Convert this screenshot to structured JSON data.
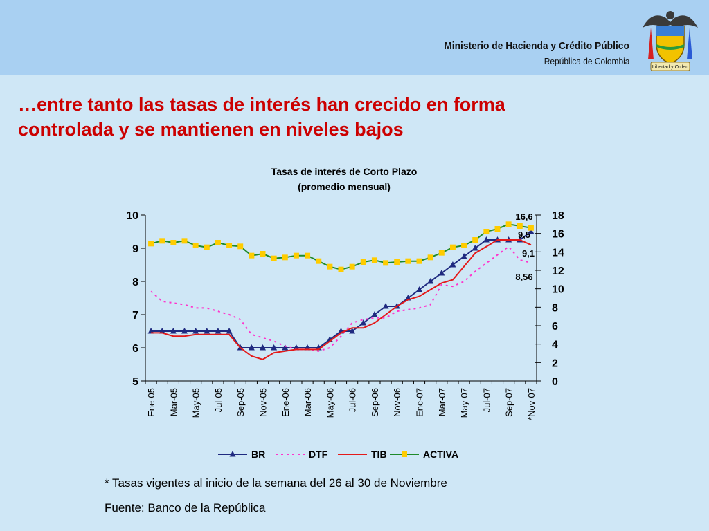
{
  "header": {
    "ministry": "Ministerio de Hacienda y Crédito Público",
    "republic": "República de Colombia",
    "motto": "Libertad y Orden"
  },
  "slide": {
    "title_line1": "…entre tanto las tasas de interés han crecido en forma",
    "title_line2": "controlada y se mantienen en niveles bajos"
  },
  "notes": {
    "footnote": "* Tasas vigentes al inicio de la semana del 26 al 30 de Noviembre",
    "source": "Fuente: Banco de la República"
  },
  "colors": {
    "br": "#1f2a80",
    "dtf": "#ff33cc",
    "tib": "#e41a1a",
    "activa": "#1f8a2a",
    "activa_marker": "#ffcc00",
    "title": "#cc0000"
  },
  "chart_data": {
    "type": "line",
    "title": "Tasas de interés de Corto Plazo",
    "subtitle": "(promedio mensual)",
    "x": [
      "Ene-05",
      "Feb-05",
      "Mar-05",
      "Abr-05",
      "May-05",
      "Jun-05",
      "Jul-05",
      "Ago-05",
      "Sep-05",
      "Oct-05",
      "Nov-05",
      "Dic-05",
      "Ene-06",
      "Feb-06",
      "Mar-06",
      "Abr-06",
      "May-06",
      "Jun-06",
      "Jul-06",
      "Ago-06",
      "Sep-06",
      "Oct-06",
      "Nov-06",
      "Dic-06",
      "Ene-07",
      "Feb-07",
      "Mar-07",
      "Abr-07",
      "May-07",
      "Jun-07",
      "Jul-07",
      "Ago-07",
      "Sep-07",
      "Oct-07",
      "*Nov-07"
    ],
    "tick_labels": [
      "Ene-05",
      "Mar-05",
      "May-05",
      "Jul-05",
      "Sep-05",
      "Nov-05",
      "Ene-06",
      "Mar-06",
      "May-06",
      "Jul-06",
      "Sep-06",
      "Nov-06",
      "Ene-07",
      "Mar-07",
      "May-07",
      "Jul-07",
      "Sep-07",
      "*Nov-07"
    ],
    "y_left": {
      "min": 5,
      "max": 10,
      "ticks": [
        5,
        6,
        7,
        8,
        9,
        10
      ]
    },
    "y_right": {
      "min": 0,
      "max": 18,
      "ticks": [
        0,
        2,
        4,
        6,
        8,
        10,
        12,
        14,
        16,
        18
      ]
    },
    "series": [
      {
        "name": "BR",
        "axis": "left",
        "style": "line-triangle",
        "values": [
          6.5,
          6.5,
          6.5,
          6.5,
          6.5,
          6.5,
          6.5,
          6.5,
          6.0,
          6.0,
          6.0,
          6.0,
          6.0,
          6.0,
          6.0,
          6.0,
          6.25,
          6.5,
          6.5,
          6.75,
          7.0,
          7.25,
          7.25,
          7.5,
          7.75,
          8.0,
          8.25,
          8.5,
          8.75,
          9.0,
          9.25,
          9.25,
          9.25,
          9.25,
          9.5
        ]
      },
      {
        "name": "DTF",
        "axis": "left",
        "style": "dotted",
        "values": [
          7.7,
          7.4,
          7.35,
          7.3,
          7.2,
          7.2,
          7.1,
          7.0,
          6.85,
          6.4,
          6.3,
          6.2,
          6.05,
          5.95,
          5.95,
          5.9,
          6.0,
          6.35,
          6.75,
          6.85,
          6.9,
          6.9,
          7.1,
          7.15,
          7.2,
          7.3,
          7.9,
          7.85,
          8.0,
          8.3,
          8.55,
          8.8,
          9.05,
          8.65,
          8.56
        ]
      },
      {
        "name": "TIB",
        "axis": "left",
        "style": "solid",
        "values": [
          6.45,
          6.45,
          6.35,
          6.35,
          6.4,
          6.4,
          6.4,
          6.4,
          6.0,
          5.75,
          5.65,
          5.85,
          5.9,
          5.95,
          5.95,
          5.95,
          6.2,
          6.45,
          6.6,
          6.6,
          6.75,
          7.0,
          7.25,
          7.45,
          7.55,
          7.75,
          7.95,
          8.05,
          8.45,
          8.85,
          9.05,
          9.25,
          9.25,
          9.25,
          9.1
        ]
      },
      {
        "name": "ACTIVA",
        "axis": "right",
        "style": "line-square",
        "values": [
          14.9,
          15.2,
          15.0,
          15.2,
          14.7,
          14.5,
          15.0,
          14.7,
          14.6,
          13.6,
          13.8,
          13.3,
          13.4,
          13.6,
          13.6,
          13.0,
          12.4,
          12.1,
          12.4,
          12.9,
          13.1,
          12.8,
          12.9,
          13.0,
          13.0,
          13.4,
          13.9,
          14.5,
          14.7,
          15.3,
          16.2,
          16.5,
          17.0,
          16.8,
          16.6
        ]
      }
    ],
    "annotations": [
      "16,6",
      "9,5",
      "9,1",
      "8,56"
    ],
    "legend_position": "bottom"
  }
}
